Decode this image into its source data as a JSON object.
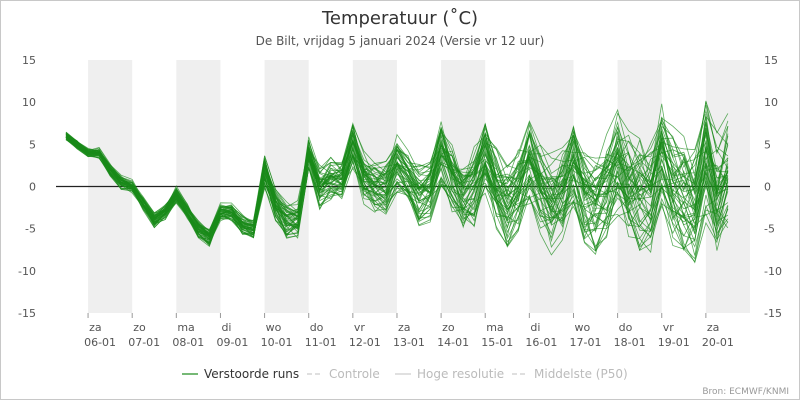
{
  "chart_data": {
    "type": "line",
    "title": "Temperatuur (˚C)",
    "subtitle": "De Bilt, vrijdag 5 januari 2024 (Versie vr 12 uur)",
    "credit": "Bron: ECMWF/KNMI",
    "ylim": [
      -15,
      15
    ],
    "yticks": [
      15,
      10,
      5,
      0,
      -5,
      -10,
      -15
    ],
    "xlim": [
      0,
      15.5
    ],
    "x_ticks": [
      {
        "x": 0.5,
        "day": "za",
        "date": "06-01"
      },
      {
        "x": 1.5,
        "day": "zo",
        "date": "07-01"
      },
      {
        "x": 2.5,
        "day": "ma",
        "date": "08-01"
      },
      {
        "x": 3.5,
        "day": "di",
        "date": "09-01"
      },
      {
        "x": 4.5,
        "day": "wo",
        "date": "10-01"
      },
      {
        "x": 5.5,
        "day": "do",
        "date": "11-01"
      },
      {
        "x": 6.5,
        "day": "vr",
        "date": "12-01"
      },
      {
        "x": 7.5,
        "day": "za",
        "date": "13-01"
      },
      {
        "x": 8.5,
        "day": "zo",
        "date": "14-01"
      },
      {
        "x": 9.5,
        "day": "ma",
        "date": "15-01"
      },
      {
        "x": 10.5,
        "day": "di",
        "date": "16-01"
      },
      {
        "x": 11.5,
        "day": "wo",
        "date": "17-01"
      },
      {
        "x": 12.5,
        "day": "do",
        "date": "18-01"
      },
      {
        "x": 13.5,
        "day": "vr",
        "date": "19-01"
      },
      {
        "x": 14.5,
        "day": "za",
        "date": "20-01"
      }
    ],
    "shaded_days": [
      [
        0.5,
        1.5
      ],
      [
        2.5,
        3.5
      ],
      [
        4.5,
        5.5
      ],
      [
        6.5,
        7.5
      ],
      [
        8.5,
        9.5
      ],
      [
        10.5,
        11.5
      ],
      [
        12.5,
        13.5
      ],
      [
        14.5,
        15.5
      ]
    ],
    "ensemble": {
      "name": "Verstoorde runs",
      "color": "#1a8a1a",
      "members": 50,
      "x": [
        0,
        0.25,
        0.5,
        0.75,
        1,
        1.25,
        1.5,
        1.75,
        2,
        2.25,
        2.5,
        2.75,
        3,
        3.25,
        3.5,
        3.75,
        4,
        4.25,
        4.5,
        4.75,
        5,
        5.25,
        5.5,
        5.75,
        6,
        6.25,
        6.5,
        6.75,
        7,
        7.25,
        7.5,
        7.75,
        8,
        8.25,
        8.5,
        8.75,
        9,
        9.25,
        9.5,
        9.75,
        10,
        10.25,
        10.5,
        10.75,
        11,
        11.25,
        11.5,
        11.75,
        12,
        12.25,
        12.5,
        12.75,
        13,
        13.25,
        13.5,
        13.75,
        14,
        14.25,
        14.5,
        14.75,
        15
      ],
      "mean": [
        6,
        5,
        4,
        4,
        2,
        0.5,
        0,
        -2,
        -4,
        -3,
        -1,
        -3,
        -5,
        -6,
        -3,
        -3,
        -4.5,
        -5,
        2,
        -2,
        -4,
        -4,
        4,
        0,
        1,
        1,
        5,
        1,
        0,
        0,
        3,
        1,
        -1,
        0,
        4,
        1,
        -1,
        0,
        4,
        0,
        -2,
        0,
        3,
        0,
        -2,
        -1,
        3,
        -1,
        -2,
        0,
        3,
        0,
        -1,
        -1,
        4,
        0,
        -1,
        -2,
        3,
        -1,
        2
      ],
      "spread": [
        0.5,
        0.5,
        0.6,
        0.6,
        0.7,
        0.8,
        0.8,
        0.8,
        0.9,
        0.9,
        1,
        1,
        1,
        1,
        1,
        1,
        1.2,
        1.2,
        2,
        2,
        2.2,
        2.2,
        2,
        2.5,
        2.5,
        2.5,
        2.8,
        3,
        3,
        3.2,
        3.5,
        3.5,
        3.8,
        4,
        4,
        4,
        4.2,
        4.5,
        4.5,
        4.5,
        5,
        5,
        5,
        5,
        5.5,
        5.5,
        5.5,
        6,
        6,
        6,
        6.5,
        6.5,
        6.5,
        7,
        7,
        7,
        7,
        7,
        7,
        7,
        7
      ]
    }
  },
  "legend": [
    {
      "label": "Verstoorde runs",
      "color": "#333333",
      "line": "#1a8a1a",
      "dash": false
    },
    {
      "label": "Controle",
      "color": "#bbbbbb",
      "line": "#cccccc",
      "dash": true
    },
    {
      "label": "Hoge resolutie",
      "color": "#bbbbbb",
      "line": "#cccccc",
      "dash": false
    },
    {
      "label": "Middelste (P50)",
      "color": "#bbbbbb",
      "line": "#cccccc",
      "dash": true
    }
  ]
}
